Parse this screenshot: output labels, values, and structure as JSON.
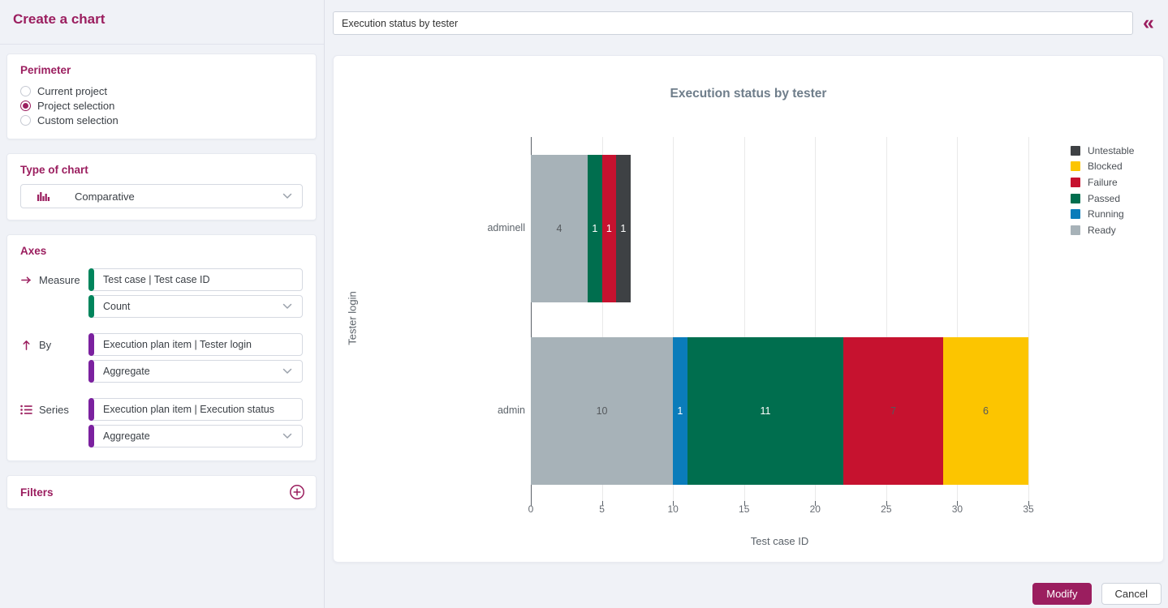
{
  "app": {
    "title": "Create a chart",
    "collapse_icon": "«"
  },
  "colors": {
    "brand": "#9b1e5f",
    "measure_accent": "#00855c",
    "dimension_accent": "#7b219f"
  },
  "sidebar": {
    "perimeter": {
      "label": "Perimeter",
      "options": [
        {
          "label": "Current project",
          "selected": false
        },
        {
          "label": "Project selection",
          "selected": true
        },
        {
          "label": "Custom selection",
          "selected": false
        }
      ]
    },
    "type_of_chart": {
      "label": "Type of chart",
      "value": "Comparative",
      "icon": "bar-chart"
    },
    "axes": {
      "label": "Axes",
      "rows": [
        {
          "icon": "arrow-right",
          "label": "Measure",
          "attribute": "Test case | Test case ID",
          "operation": "Count",
          "accent": "#00855c"
        },
        {
          "icon": "arrow-up",
          "label": "By",
          "attribute": "Execution plan item | Tester login",
          "operation": "Aggregate",
          "accent": "#7b219f"
        },
        {
          "icon": "list",
          "label": "Series",
          "attribute": "Execution plan item | Execution status",
          "operation": "Aggregate",
          "accent": "#7b219f"
        }
      ]
    },
    "filters": {
      "label": "Filters",
      "icon": "plus-circle"
    }
  },
  "topbar": {
    "chart_name": "Execution status by tester"
  },
  "actions": {
    "modify": "Modify",
    "cancel": "Cancel"
  },
  "chart_data": {
    "type": "bar",
    "orientation": "horizontal",
    "stacked": true,
    "title": "Execution status by tester",
    "xlabel": "Test case ID",
    "ylabel": "Tester login",
    "xlim": [
      0,
      35
    ],
    "xticks": [
      0,
      5,
      10,
      15,
      20,
      25,
      30,
      35
    ],
    "grid": true,
    "legend_position": "top-right",
    "legend_order": [
      "Untestable",
      "Blocked",
      "Failure",
      "Passed",
      "Running",
      "Ready"
    ],
    "categories": [
      "adminell",
      "admin"
    ],
    "series": [
      {
        "name": "Ready",
        "color": "#a7b2b8",
        "values": [
          4,
          10
        ],
        "label_colors": [
          "dark",
          "dark"
        ]
      },
      {
        "name": "Running",
        "color": "#0a7cba",
        "values": [
          0,
          1
        ],
        "label_colors": [
          null,
          "light"
        ]
      },
      {
        "name": "Passed",
        "color": "#006e4e",
        "values": [
          1,
          11
        ],
        "label_colors": [
          "light",
          "light"
        ]
      },
      {
        "name": "Failure",
        "color": "#c6122f",
        "values": [
          1,
          7
        ],
        "label_colors": [
          "light",
          "dark"
        ]
      },
      {
        "name": "Untestable",
        "color": "#3e4144",
        "values": [
          1,
          0
        ],
        "label_colors": [
          "light",
          null
        ]
      },
      {
        "name": "Blocked",
        "color": "#fcc500",
        "values": [
          0,
          6
        ],
        "label_colors": [
          null,
          "dark"
        ]
      }
    ]
  }
}
